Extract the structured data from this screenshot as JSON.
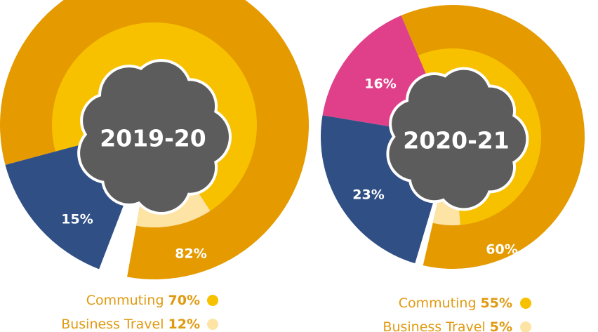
{
  "chart_data": [
    {
      "type": "pie",
      "title": "2019-20",
      "values": [
        82,
        15
      ],
      "value_labels": [
        "82%",
        "15%"
      ],
      "colors": [
        "#e59a00",
        "#2f4f85"
      ],
      "inner": [
        {
          "name": "Commuting",
          "value": 70,
          "value_label": "70%",
          "color": "#f7c100"
        },
        {
          "name": "Business Travel",
          "value": 12,
          "value_label": "12%",
          "color": "#fde3a4"
        }
      ]
    },
    {
      "type": "pie",
      "title": "2020-21",
      "values": [
        60,
        16,
        23
      ],
      "value_labels": [
        "60%",
        "16%",
        "23%"
      ],
      "colors": [
        "#e59a00",
        "#e0408a",
        "#2f4f85"
      ],
      "inner": [
        {
          "name": "Commuting",
          "value": 55,
          "value_label": "55%",
          "color": "#f7c100"
        },
        {
          "name": "Business Travel",
          "value": 5,
          "value_label": "5%",
          "color": "#fde3a4"
        }
      ]
    }
  ]
}
